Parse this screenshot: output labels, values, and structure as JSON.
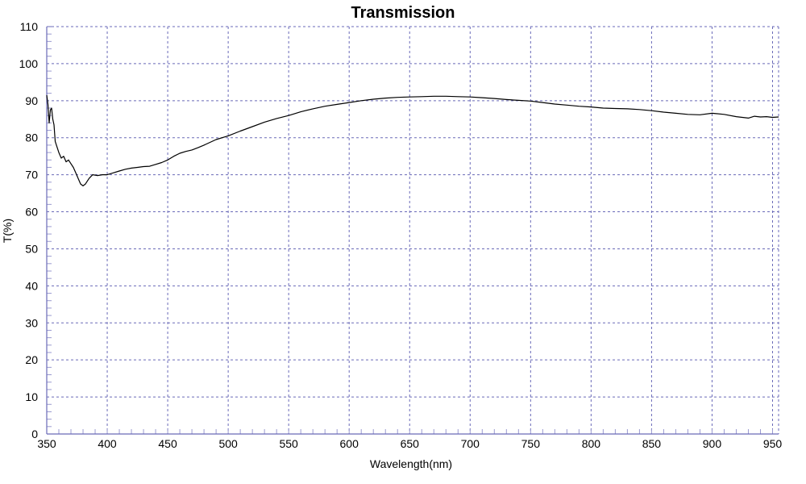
{
  "chart_data": {
    "type": "line",
    "title": "Transmission",
    "xlabel": "Wavelength(nm)",
    "ylabel": "T(%)",
    "xlim": [
      350,
      955
    ],
    "ylim": [
      0,
      110
    ],
    "x_ticks": [
      350,
      400,
      450,
      500,
      550,
      600,
      650,
      700,
      750,
      800,
      850,
      900,
      950
    ],
    "y_ticks": [
      0,
      10,
      20,
      30,
      40,
      50,
      60,
      70,
      80,
      90,
      100,
      110
    ],
    "grid": true,
    "colors": {
      "line": "#000000",
      "grid": "#6a6ab8",
      "axis": "#6a6ab8",
      "minor_tick": "#9a9ad0"
    },
    "series": [
      {
        "x": [
          350,
          351,
          352,
          353,
          354,
          355,
          356,
          357,
          358,
          360,
          362,
          364,
          366,
          368,
          370,
          372,
          374,
          376,
          378,
          380,
          382,
          385,
          388,
          392,
          396,
          400,
          405,
          410,
          415,
          420,
          425,
          430,
          435,
          440,
          445,
          450,
          455,
          460,
          465,
          470,
          475,
          480,
          490,
          500,
          510,
          520,
          530,
          540,
          550,
          560,
          570,
          580,
          590,
          600,
          610,
          620,
          630,
          640,
          650,
          660,
          670,
          680,
          690,
          700,
          710,
          720,
          730,
          740,
          750,
          760,
          770,
          780,
          790,
          800,
          810,
          820,
          830,
          840,
          850,
          860,
          870,
          880,
          890,
          900,
          910,
          920,
          925,
          930,
          935,
          940,
          945,
          950,
          955
        ],
        "y": [
          91.5,
          89.0,
          84.0,
          87.5,
          88.0,
          85.0,
          83.5,
          79.0,
          78.0,
          76.0,
          74.5,
          75.0,
          73.5,
          74.0,
          73.0,
          72.0,
          70.5,
          69.0,
          67.5,
          67.0,
          67.5,
          69.0,
          70.0,
          69.8,
          70.0,
          70.0,
          70.5,
          71.0,
          71.5,
          71.8,
          72.0,
          72.2,
          72.3,
          72.8,
          73.3,
          74.0,
          75.0,
          75.8,
          76.3,
          76.7,
          77.3,
          78.0,
          79.5,
          80.5,
          81.8,
          83.0,
          84.2,
          85.2,
          86.0,
          87.0,
          87.8,
          88.5,
          89.0,
          89.5,
          90.0,
          90.4,
          90.7,
          90.9,
          91.0,
          91.1,
          91.2,
          91.2,
          91.1,
          91.0,
          90.8,
          90.6,
          90.3,
          90.1,
          89.9,
          89.5,
          89.1,
          88.8,
          88.5,
          88.3,
          88.0,
          87.9,
          87.8,
          87.6,
          87.3,
          86.9,
          86.6,
          86.3,
          86.2,
          86.6,
          86.3,
          85.7,
          85.5,
          85.3,
          85.8,
          85.6,
          85.7,
          85.5,
          85.6
        ]
      }
    ]
  }
}
